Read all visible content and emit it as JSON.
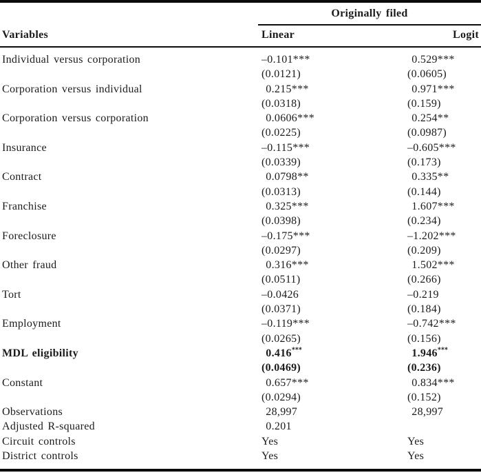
{
  "table": {
    "header": {
      "group_label": "Originally filed",
      "variables_label": "Variables",
      "col_labels": [
        "Linear",
        "Logit"
      ]
    },
    "rows": [
      {
        "label": "Individual versus corporation",
        "bold": false,
        "stars_sup": false,
        "cells": [
          {
            "est": "–0.101***",
            "se": "(0.0121)"
          },
          {
            "est": " 0.529***",
            "se": "(0.0605)"
          }
        ]
      },
      {
        "label": "Corporation versus individual",
        "bold": false,
        "stars_sup": false,
        "cells": [
          {
            "est": " 0.215***",
            "se": "(0.0318)"
          },
          {
            "est": " 0.971***",
            "se": "(0.159)"
          }
        ]
      },
      {
        "label": "Corporation versus corporation",
        "bold": false,
        "stars_sup": false,
        "cells": [
          {
            "est": " 0.0606***",
            "se": "(0.0225)"
          },
          {
            "est": " 0.254**",
            "se": "(0.0987)"
          }
        ]
      },
      {
        "label": "Insurance",
        "bold": false,
        "stars_sup": false,
        "cells": [
          {
            "est": "–0.115***",
            "se": "(0.0339)"
          },
          {
            "est": "–0.605***",
            "se": "(0.173)"
          }
        ]
      },
      {
        "label": "Contract",
        "bold": false,
        "stars_sup": false,
        "cells": [
          {
            "est": " 0.0798**",
            "se": "(0.0313)"
          },
          {
            "est": " 0.335**",
            "se": "(0.144)"
          }
        ]
      },
      {
        "label": "Franchise",
        "bold": false,
        "stars_sup": false,
        "cells": [
          {
            "est": " 0.325***",
            "se": "(0.0398)"
          },
          {
            "est": " 1.607***",
            "se": "(0.234)"
          }
        ]
      },
      {
        "label": "Foreclosure",
        "bold": false,
        "stars_sup": false,
        "cells": [
          {
            "est": "–0.175***",
            "se": "(0.0297)"
          },
          {
            "est": "–1.202***",
            "se": "(0.209)"
          }
        ]
      },
      {
        "label": "Other fraud",
        "bold": false,
        "stars_sup": false,
        "cells": [
          {
            "est": " 0.316***",
            "se": "(0.0511)"
          },
          {
            "est": " 1.502***",
            "se": "(0.266)"
          }
        ]
      },
      {
        "label": "Tort",
        "bold": false,
        "stars_sup": false,
        "cells": [
          {
            "est": "–0.0426",
            "se": "(0.0371)"
          },
          {
            "est": "–0.219",
            "se": "(0.184)"
          }
        ]
      },
      {
        "label": "Employment",
        "bold": false,
        "stars_sup": false,
        "cells": [
          {
            "est": "–0.119***",
            "se": "(0.0265)"
          },
          {
            "est": "–0.742***",
            "se": "(0.156)"
          }
        ]
      },
      {
        "label": "MDL eligibility",
        "bold": true,
        "stars_sup": true,
        "cells": [
          {
            "est": " 0.416***",
            "se": "(0.0469)"
          },
          {
            "est": " 1.946***",
            "se": "(0.236)"
          }
        ]
      },
      {
        "label": "Constant",
        "bold": false,
        "stars_sup": false,
        "cells": [
          {
            "est": " 0.657***",
            "se": "(0.0294)"
          },
          {
            "est": " 0.834***",
            "se": "(0.152)"
          }
        ]
      }
    ],
    "summary_rows": [
      {
        "label": "Observations",
        "values": [
          " 28,997",
          " 28,997"
        ]
      },
      {
        "label": "Adjusted R-squared",
        "values": [
          " 0.201",
          ""
        ]
      },
      {
        "label": "Circuit controls",
        "values": [
          "Yes",
          "Yes"
        ]
      },
      {
        "label": "District controls",
        "values": [
          "Yes",
          "Yes"
        ]
      }
    ]
  }
}
